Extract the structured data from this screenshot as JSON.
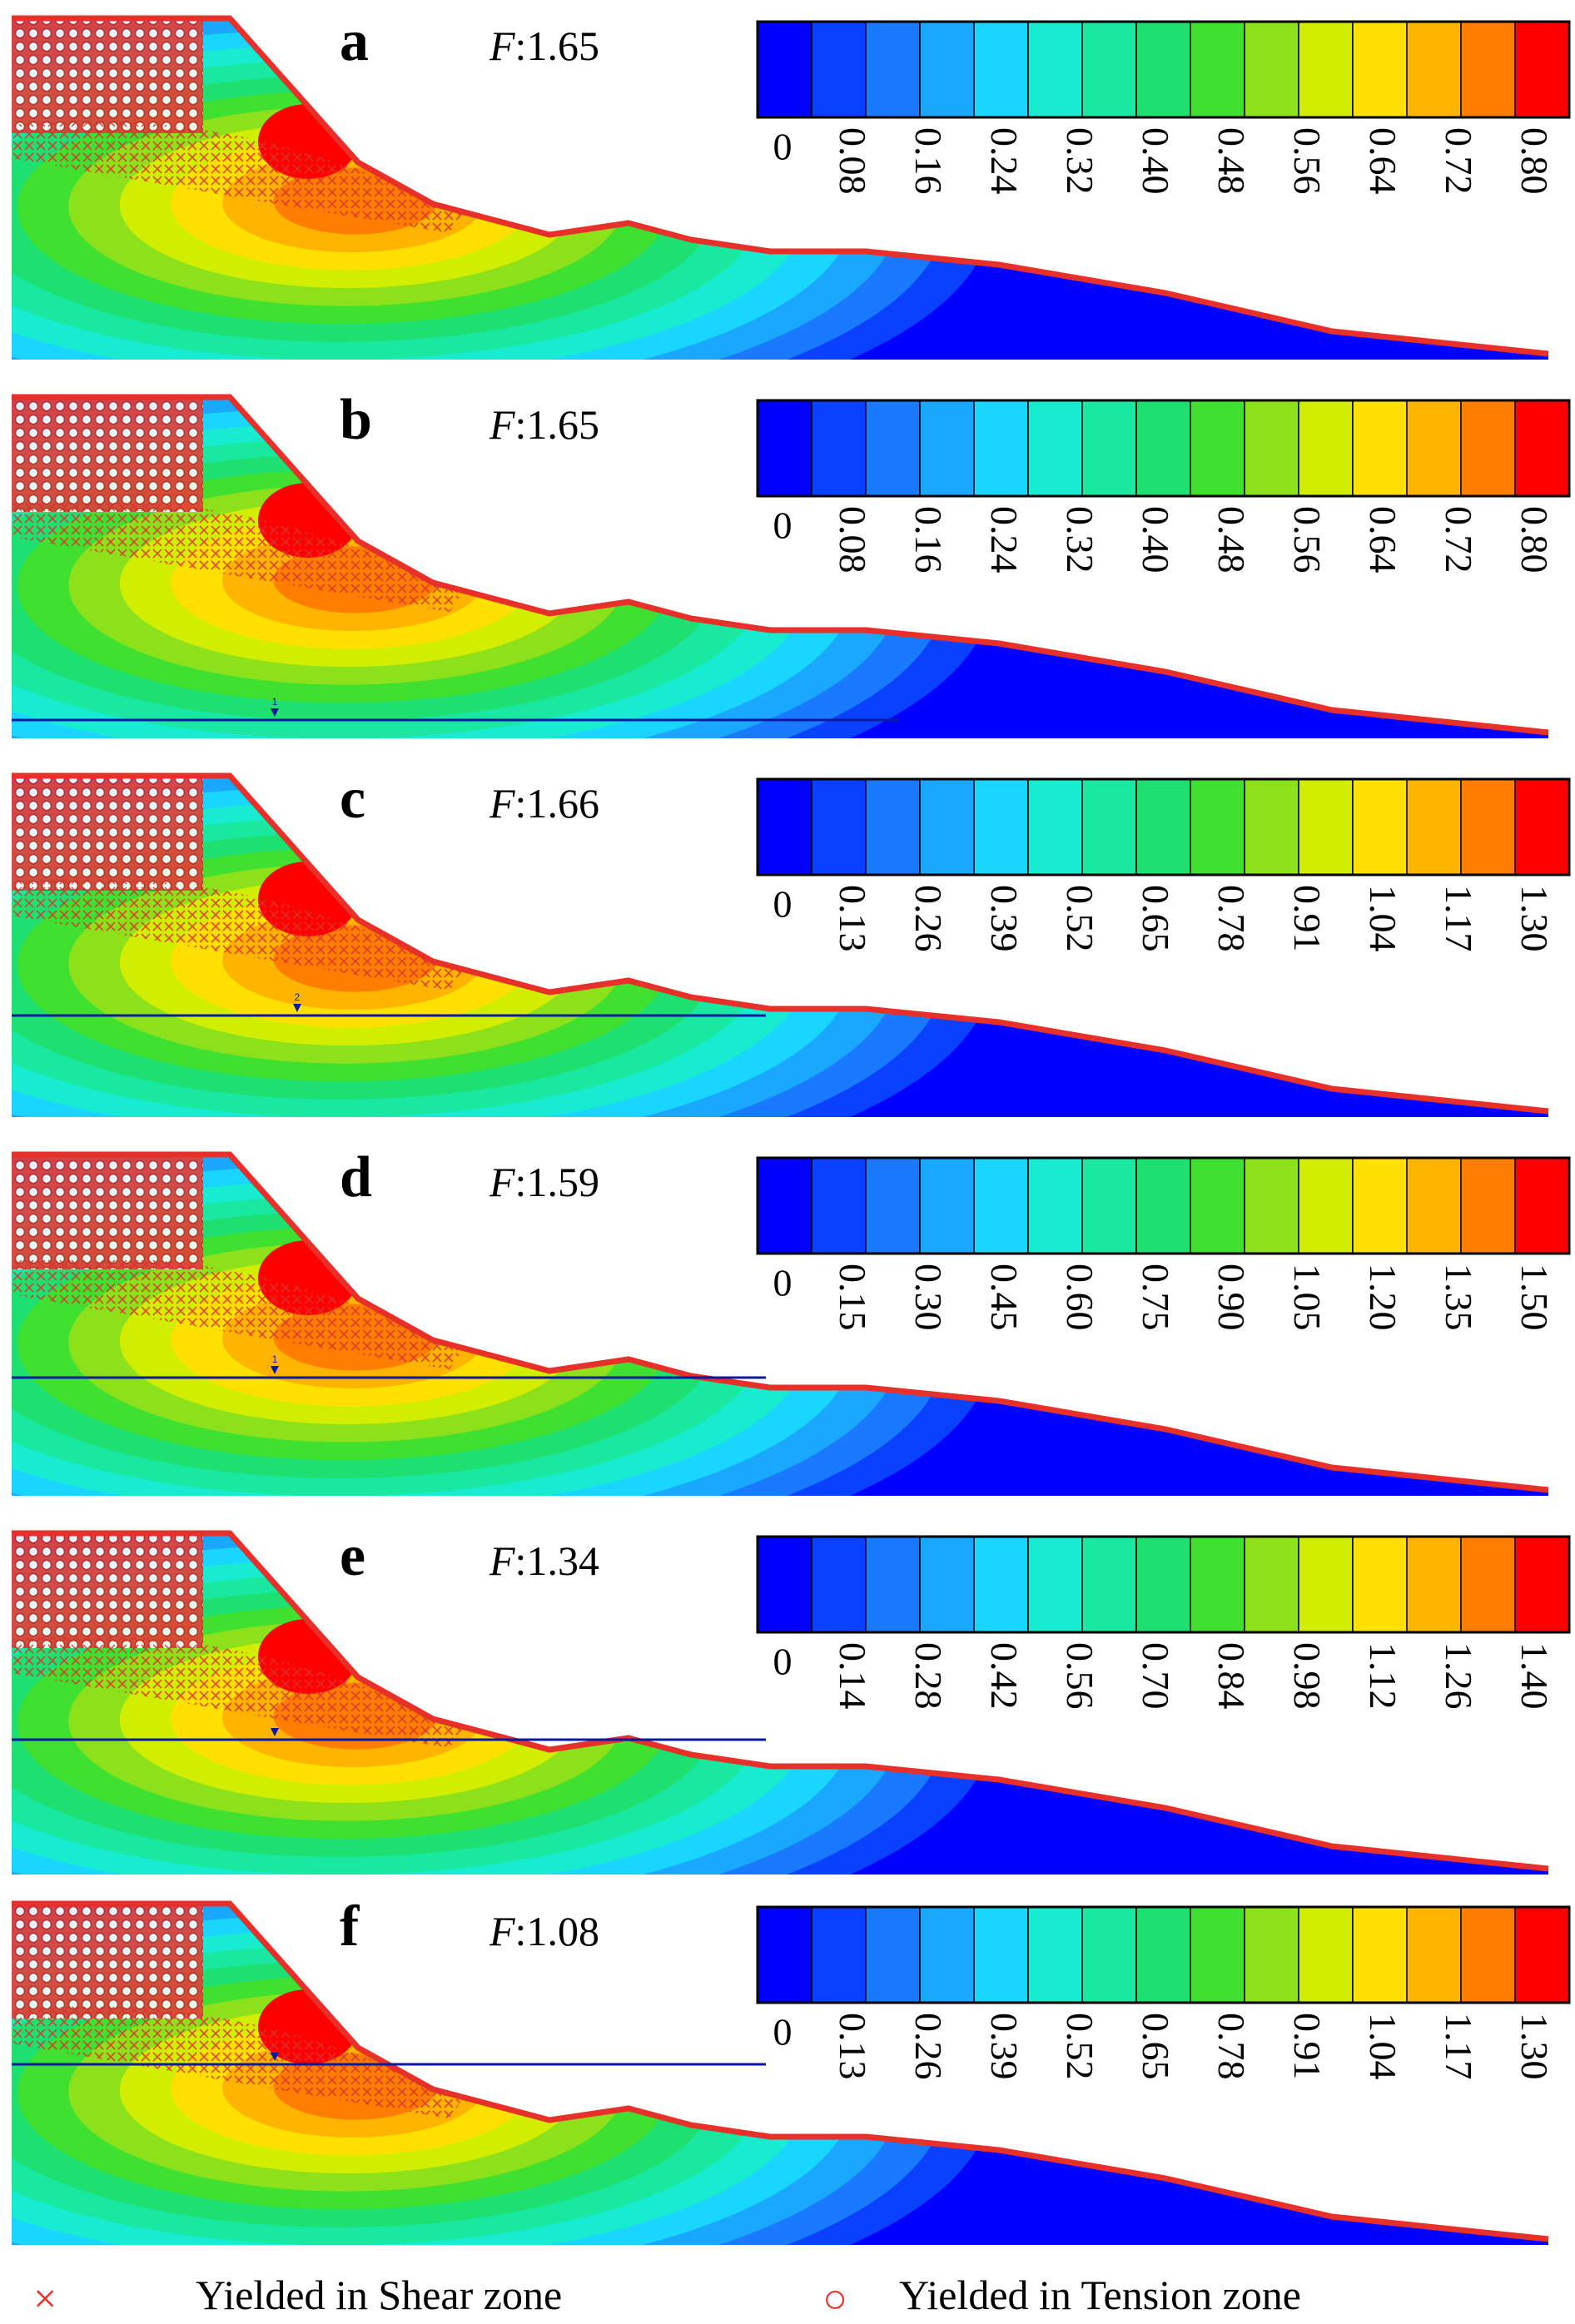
{
  "colors": {
    "scale": [
      "#0000ff",
      "#0a40ff",
      "#1a7aff",
      "#1aa8ff",
      "#19d6ff",
      "#17ecd0",
      "#18e8a0",
      "#1ee070",
      "#40e030",
      "#8ce11a",
      "#d2ee00",
      "#ffe000",
      "#ffb400",
      "#ff7d00",
      "#ff0000"
    ],
    "yield_marker": "#e8302a",
    "water_table": "#0a1aa0"
  },
  "panels": [
    {
      "letter": "a",
      "factor_label": "F",
      "factor_value": ":1.65",
      "has_water_table": false,
      "ticks": [
        "0",
        "0.08",
        "0.16",
        "0.24",
        "0.32",
        "0.40",
        "0.48",
        "0.56",
        "0.64",
        "0.72",
        "0.80"
      ]
    },
    {
      "letter": "b",
      "factor_label": "F",
      "factor_value": ":1.65",
      "has_water_table": true,
      "water_marker": "1",
      "ticks": [
        "0",
        "0.08",
        "0.16",
        "0.24",
        "0.32",
        "0.40",
        "0.48",
        "0.56",
        "0.64",
        "0.72",
        "0.80"
      ]
    },
    {
      "letter": "c",
      "factor_label": "F",
      "factor_value": ":1.66",
      "has_water_table": true,
      "water_marker": "2",
      "ticks": [
        "0",
        "0.13",
        "0.26",
        "0.39",
        "0.52",
        "0.65",
        "0.78",
        "0.91",
        "1.04",
        "1.17",
        "1.30"
      ]
    },
    {
      "letter": "d",
      "factor_label": "F",
      "factor_value": ":1.59",
      "has_water_table": true,
      "water_marker": "1",
      "ticks": [
        "0",
        "0.15",
        "0.30",
        "0.45",
        "0.60",
        "0.75",
        "0.90",
        "1.05",
        "1.20",
        "1.35",
        "1.50"
      ]
    },
    {
      "letter": "e",
      "factor_label": "F",
      "factor_value": ":1.34",
      "has_water_table": true,
      "water_marker": "",
      "ticks": [
        "0",
        "0.14",
        "0.28",
        "0.42",
        "0.56",
        "0.70",
        "0.84",
        "0.98",
        "1.12",
        "1.26",
        "1.40"
      ]
    },
    {
      "letter": "f",
      "factor_label": "F",
      "factor_value": ":1.08",
      "has_water_table": true,
      "water_marker": "",
      "ticks": [
        "0",
        "0.13",
        "0.26",
        "0.39",
        "0.52",
        "0.65",
        "0.78",
        "0.91",
        "1.04",
        "1.17",
        "1.30"
      ]
    }
  ],
  "legend": {
    "shear_symbol": "×",
    "shear_label": "Yielded in Shear zone",
    "tension_symbol": "○",
    "tension_label": "Yielded in Tension zone"
  }
}
